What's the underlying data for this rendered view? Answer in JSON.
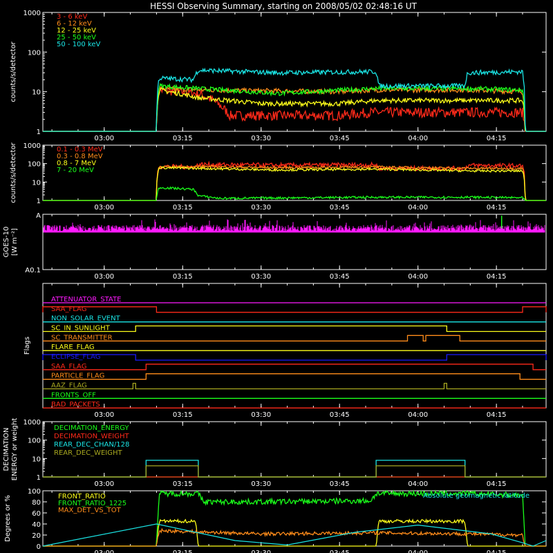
{
  "title": "HESSI Observing Summary, starting on 2008/05/02 02:48:16 UT",
  "colors": {
    "background": "#000000",
    "axes": "#ffffff",
    "red": "#ff2a1a",
    "orange": "#ff8c1a",
    "yellow": "#ffff1a",
    "green": "#1aff1a",
    "cyan": "#1ae6e6",
    "magenta": "#ff1aff",
    "blue": "#1a1aff",
    "olive": "#a8a820",
    "white": "#ffffff"
  },
  "time_axis": {
    "start": "02:48:16",
    "end": "04:24:30",
    "tick_labels": [
      "03:00",
      "03:15",
      "03:30",
      "03:45",
      "04:00",
      "04:15"
    ]
  },
  "chart_data": [
    {
      "id": "lightcurves",
      "type": "line",
      "ylabel": "counts/s/detector",
      "yscale": "log",
      "ylim": [
        1,
        1000
      ],
      "yticks": [
        "1",
        "10",
        "100",
        "1000"
      ],
      "series": [
        {
          "name": "3 - 6 keV",
          "color": "#ff2a1a",
          "points": [
            [
              "02:48:16",
              1
            ],
            [
              "03:10:00",
              1
            ],
            [
              "03:10:30",
              11
            ],
            [
              "03:18:00",
              9
            ],
            [
              "03:24:00",
              2.5
            ],
            [
              "03:45:00",
              2.5
            ],
            [
              "03:51:00",
              3
            ],
            [
              "04:09:00",
              3
            ],
            [
              "04:20:00",
              3
            ],
            [
              "04:20:30",
              1
            ],
            [
              "04:24:30",
              1
            ]
          ]
        },
        {
          "name": "6 - 12 keV",
          "color": "#ff8c1a",
          "points": [
            [
              "02:48:16",
              1
            ],
            [
              "03:10:00",
              1
            ],
            [
              "03:10:30",
              12
            ],
            [
              "03:20:00",
              11
            ],
            [
              "03:45:00",
              10
            ],
            [
              "03:52:00",
              11
            ],
            [
              "04:10:00",
              11
            ],
            [
              "04:20:00",
              10
            ],
            [
              "04:20:30",
              1
            ],
            [
              "04:24:30",
              1
            ]
          ]
        },
        {
          "name": "12 - 25 keV",
          "color": "#ffff1a",
          "points": [
            [
              "02:48:16",
              1
            ],
            [
              "03:10:00",
              1
            ],
            [
              "03:10:30",
              11
            ],
            [
              "03:18:00",
              7
            ],
            [
              "03:30:00",
              5
            ],
            [
              "03:45:00",
              5
            ],
            [
              "03:52:00",
              6
            ],
            [
              "04:10:00",
              6
            ],
            [
              "04:20:00",
              6
            ],
            [
              "04:20:30",
              1
            ],
            [
              "04:24:30",
              1
            ]
          ]
        },
        {
          "name": "25 - 50 keV",
          "color": "#1aff1a",
          "points": [
            [
              "02:48:16",
              1
            ],
            [
              "03:10:00",
              1
            ],
            [
              "03:10:30",
              14
            ],
            [
              "03:18:00",
              12
            ],
            [
              "03:33:00",
              9
            ],
            [
              "03:52:00",
              12
            ],
            [
              "04:10:00",
              12
            ],
            [
              "04:20:00",
              11
            ],
            [
              "04:20:30",
              1
            ],
            [
              "04:24:30",
              1
            ]
          ]
        },
        {
          "name": "50 - 100 keV",
          "color": "#1ae6e6",
          "points": [
            [
              "02:48:16",
              1
            ],
            [
              "03:10:00",
              1
            ],
            [
              "03:10:30",
              22
            ],
            [
              "03:17:00",
              20
            ],
            [
              "03:18:00",
              35
            ],
            [
              "03:33:00",
              30
            ],
            [
              "03:52:00",
              32
            ],
            [
              "03:52:30",
              14
            ],
            [
              "04:09:00",
              14
            ],
            [
              "04:09:30",
              30
            ],
            [
              "04:20:00",
              32
            ],
            [
              "04:20:30",
              1
            ],
            [
              "04:24:30",
              1
            ]
          ]
        }
      ]
    },
    {
      "id": "high-energy",
      "type": "line",
      "ylabel": "counts/s/detector",
      "yscale": "log",
      "ylim": [
        1,
        1000
      ],
      "yticks": [
        "1",
        "10",
        "100",
        "1000"
      ],
      "series": [
        {
          "name": "0.1 - 0.3 MeV",
          "color": "#ff2a1a",
          "points": [
            [
              "02:48:16",
              1
            ],
            [
              "03:10:00",
              1
            ],
            [
              "03:10:30",
              70
            ],
            [
              "03:17:30",
              65
            ],
            [
              "03:18:00",
              90
            ],
            [
              "03:33:00",
              80
            ],
            [
              "03:52:00",
              85
            ],
            [
              "03:52:30",
              55
            ],
            [
              "04:09:00",
              55
            ],
            [
              "04:09:30",
              80
            ],
            [
              "04:20:00",
              75
            ],
            [
              "04:20:30",
              1
            ],
            [
              "04:24:30",
              1
            ]
          ]
        },
        {
          "name": "0.3 - 0.8 MeV",
          "color": "#ff8c1a",
          "points": [
            [
              "02:48:16",
              1
            ],
            [
              "03:10:00",
              1
            ],
            [
              "03:10:30",
              65
            ],
            [
              "03:18:00",
              70
            ],
            [
              "03:33:00",
              60
            ],
            [
              "03:52:00",
              65
            ],
            [
              "04:10:00",
              55
            ],
            [
              "04:20:00",
              55
            ],
            [
              "04:20:30",
              1
            ],
            [
              "04:24:30",
              1
            ]
          ]
        },
        {
          "name": "0.8 - 7 MeV",
          "color": "#ffff1a",
          "points": [
            [
              "02:48:16",
              1
            ],
            [
              "03:10:00",
              1
            ],
            [
              "03:10:30",
              60
            ],
            [
              "03:18:00",
              55
            ],
            [
              "03:33:00",
              45
            ],
            [
              "03:52:00",
              50
            ],
            [
              "04:10:00",
              40
            ],
            [
              "04:20:00",
              40
            ],
            [
              "04:20:30",
              1
            ],
            [
              "04:24:30",
              1
            ]
          ]
        },
        {
          "name": "7 - 20 MeV",
          "color": "#1aff1a",
          "points": [
            [
              "02:48:16",
              1
            ],
            [
              "03:10:00",
              1
            ],
            [
              "03:10:30",
              5
            ],
            [
              "03:17:00",
              4
            ],
            [
              "03:18:00",
              1.8
            ],
            [
              "03:22:00",
              1.3
            ],
            [
              "03:52:00",
              1.5
            ],
            [
              "04:10:00",
              1.5
            ],
            [
              "04:20:00",
              1.4
            ],
            [
              "04:20:30",
              1
            ],
            [
              "04:24:30",
              1
            ]
          ]
        }
      ]
    },
    {
      "id": "goes",
      "type": "line",
      "ylabel": "GOES-10",
      "ylabel2": "[W m⁻²]",
      "yticks": [
        "A0.1",
        "A"
      ],
      "series": [
        {
          "name": "GOES-10",
          "color": "#ff1aff",
          "level": 0.72,
          "spike_time": "04:16:00"
        }
      ]
    },
    {
      "id": "flags",
      "type": "line",
      "ylabel": "Flags",
      "series": [
        {
          "name": "ATTENUATOR_STATE",
          "color": "#ff1aff",
          "segments": []
        },
        {
          "name": "SAA_FLAG",
          "color": "#ff2a1a",
          "segments": [
            [
              "02:48:16",
              "03:10:00"
            ],
            [
              "04:20:00",
              "04:24:30"
            ]
          ]
        },
        {
          "name": "NON_SOLAR_EVENT",
          "color": "#1ae6e6",
          "segments": []
        },
        {
          "name": "SC_IN_SUNLIGHT",
          "color": "#ffff1a",
          "segments": [
            [
              "03:06:00",
              "04:05:30"
            ]
          ]
        },
        {
          "name": "SC_TRANSMITTER",
          "color": "#ff8c1a",
          "segments": [
            [
              "03:58:00",
              "04:01:00"
            ],
            [
              "04:01:30",
              "04:08:00"
            ]
          ]
        },
        {
          "name": "FLARE_FLAG",
          "color": "#ffff1a",
          "segments": []
        },
        {
          "name": "ECLIPSE_FLAG",
          "color": "#1a1aff",
          "segments": [
            [
              "02:48:16",
              "03:06:00"
            ],
            [
              "04:05:30",
              "04:24:30"
            ]
          ]
        },
        {
          "name": "SAA_FLAG",
          "color": "#ff2a1a",
          "segments": [
            [
              "03:08:00",
              "04:22:00"
            ]
          ]
        },
        {
          "name": "PARTICLE_FLAG",
          "color": "#ff8c1a",
          "segments": [
            [
              "03:08:00",
              "04:19:30"
            ]
          ]
        },
        {
          "name": "AAZ_FLAG",
          "color": "#a8a820",
          "segments": [
            [
              "03:05:30",
              "03:06:00"
            ],
            [
              "04:05:00",
              "04:05:30"
            ]
          ]
        },
        {
          "name": "FRONTS_OFF",
          "color": "#1aff1a",
          "segments": []
        },
        {
          "name": "BAD_PACKETS",
          "color": "#ff2a1a",
          "segments": []
        }
      ]
    },
    {
      "id": "decimation",
      "type": "line",
      "ylabel": "DECIMATION",
      "ylabel2": "ENERGY or weight",
      "yscale": "log",
      "ylim": [
        1,
        1000
      ],
      "yticks": [
        "1",
        "10",
        "100",
        "1000"
      ],
      "series": [
        {
          "name": "DECIMATION_ENERGY",
          "color": "#1aff1a",
          "points": [
            [
              "02:48:16",
              1
            ],
            [
              "04:24:30",
              1
            ]
          ]
        },
        {
          "name": "DECIMATION_WEIGHT",
          "color": "#ff2a1a",
          "points": [
            [
              "02:48:16",
              1
            ],
            [
              "04:24:30",
              1
            ]
          ]
        },
        {
          "name": "REAR_DEC_CHAN/128",
          "color": "#1ae6e6",
          "points": [
            [
              "02:48:16",
              1
            ],
            [
              "03:08:00",
              1
            ],
            [
              "03:08:00",
              8
            ],
            [
              "03:18:00",
              8
            ],
            [
              "03:18:00",
              1
            ],
            [
              "03:52:00",
              1
            ],
            [
              "03:52:00",
              8
            ],
            [
              "04:09:00",
              8
            ],
            [
              "04:09:00",
              1
            ],
            [
              "04:24:30",
              1
            ]
          ]
        },
        {
          "name": "REAR_DEC_WEIGHT",
          "color": "#a8a820",
          "points": [
            [
              "02:48:16",
              1
            ],
            [
              "03:08:00",
              1
            ],
            [
              "03:08:00",
              4
            ],
            [
              "03:18:00",
              4
            ],
            [
              "03:18:00",
              1
            ],
            [
              "03:52:00",
              1
            ],
            [
              "03:52:00",
              4
            ],
            [
              "04:09:00",
              4
            ],
            [
              "04:09:00",
              1
            ],
            [
              "04:24:30",
              1
            ]
          ]
        }
      ]
    },
    {
      "id": "ratios",
      "type": "line",
      "ylabel": "Degrees or %",
      "ylim": [
        0,
        100
      ],
      "yticks": [
        "0",
        "20",
        "40",
        "60",
        "80",
        "100"
      ],
      "annotation": "Absolute geomagnetic latitude",
      "series": [
        {
          "name": "FRONT_RATIO",
          "color": "#ffff1a",
          "points": [
            [
              "02:48:16",
              0
            ],
            [
              "03:10:00",
              0
            ],
            [
              "03:10:30",
              45
            ],
            [
              "03:17:30",
              45
            ],
            [
              "03:18:00",
              0
            ],
            [
              "03:52:00",
              0
            ],
            [
              "03:52:30",
              45
            ],
            [
              "04:09:00",
              45
            ],
            [
              "04:09:30",
              0
            ],
            [
              "04:24:30",
              0
            ]
          ]
        },
        {
          "name": "FRONT_RATIO_1225",
          "color": "#1aff1a",
          "points": [
            [
              "02:48:16",
              0
            ],
            [
              "03:10:00",
              0
            ],
            [
              "03:10:30",
              95
            ],
            [
              "03:18:00",
              95
            ],
            [
              "03:19:00",
              80
            ],
            [
              "03:30:00",
              80
            ],
            [
              "03:51:00",
              82
            ],
            [
              "03:52:00",
              95
            ],
            [
              "04:09:00",
              95
            ],
            [
              "04:20:00",
              92
            ],
            [
              "04:20:30",
              0
            ],
            [
              "04:24:30",
              0
            ]
          ]
        },
        {
          "name": "MAX_DET_VS_TOT",
          "color": "#ff8c1a",
          "points": [
            [
              "02:48:16",
              0
            ],
            [
              "03:10:00",
              0
            ],
            [
              "03:10:30",
              28
            ],
            [
              "03:30:00",
              22
            ],
            [
              "03:52:00",
              24
            ],
            [
              "04:10:00",
              22
            ],
            [
              "04:20:00",
              20
            ],
            [
              "04:20:30",
              0
            ],
            [
              "04:24:30",
              0
            ]
          ]
        },
        {
          "name": "Absolute geomagnetic latitude",
          "color": "#1ae6e6",
          "points": [
            [
              "02:48:16",
              0
            ],
            [
              "03:10:00",
              40
            ],
            [
              "03:25:00",
              10
            ],
            [
              "03:35:00",
              2
            ],
            [
              "03:48:00",
              25
            ],
            [
              "04:00:00",
              38
            ],
            [
              "04:14:00",
              22
            ],
            [
              "04:20:00",
              6
            ],
            [
              "04:22:00",
              0
            ],
            [
              "04:24:30",
              10
            ]
          ]
        }
      ]
    }
  ]
}
